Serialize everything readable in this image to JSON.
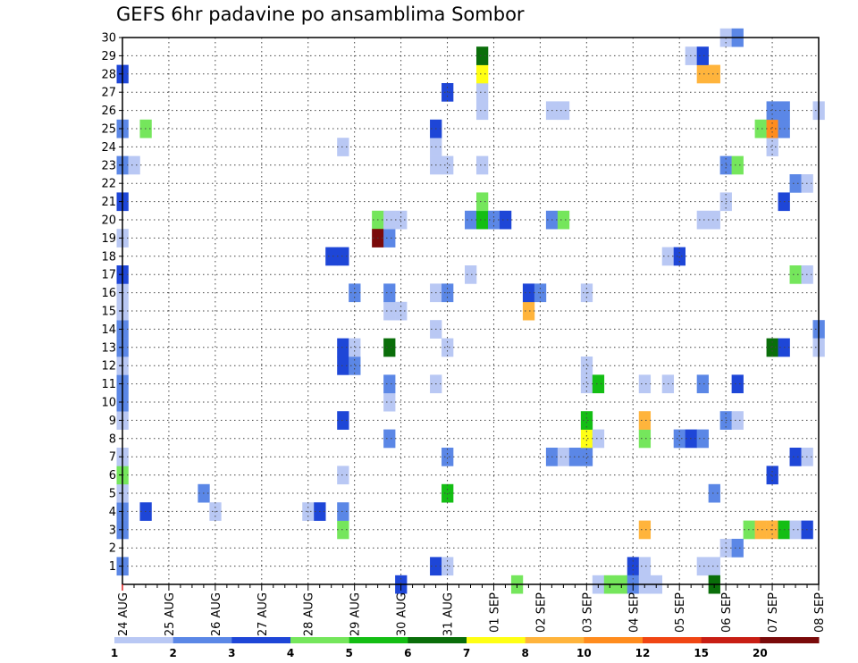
{
  "chart_data": {
    "type": "heatmap",
    "title": "GEFS 6hr padavine po ansamblima Sombor",
    "xlabel": "",
    "ylabel": "",
    "x_ticks": [
      "24 AUG",
      "25 AUG",
      "26 AUG",
      "27 AUG",
      "28 AUG",
      "29 AUG",
      "30 AUG",
      "31 AUG",
      "01 SEP",
      "02 SEP",
      "03 SEP",
      "04 SEP",
      "05 SEP",
      "06 SEP",
      "07 SEP",
      "08 SEP"
    ],
    "xlim_steps": [
      0,
      60
    ],
    "ylim": [
      0,
      30
    ],
    "y_ticks": [
      1,
      2,
      3,
      4,
      5,
      6,
      7,
      8,
      9,
      10,
      11,
      12,
      13,
      14,
      15,
      16,
      17,
      18,
      19,
      20,
      21,
      22,
      23,
      24,
      25,
      26,
      27,
      28,
      29,
      30
    ],
    "grid": true,
    "legend": {
      "placement": "bottom",
      "labels": [
        "1",
        "2",
        "3",
        "4",
        "5",
        "6",
        "7",
        "8",
        "10",
        "12",
        "15",
        "20"
      ],
      "colors": [
        "#b9c8f4",
        "#5b87e6",
        "#1e46d7",
        "#75e65c",
        "#14be14",
        "#0a6e0a",
        "#ffff14",
        "#ffb43c",
        "#ff8c1e",
        "#f04614",
        "#c81e14",
        "#7a0a0a"
      ]
    },
    "cells": [
      [
        0,
        1,
        1
      ],
      [
        0,
        3,
        1
      ],
      [
        0,
        4,
        1
      ],
      [
        0,
        5,
        0
      ],
      [
        0,
        6,
        3
      ],
      [
        0,
        7,
        0
      ],
      [
        0,
        9,
        0
      ],
      [
        0,
        10,
        1
      ],
      [
        0,
        11,
        1
      ],
      [
        0,
        12,
        0
      ],
      [
        0,
        13,
        1
      ],
      [
        0,
        14,
        1
      ],
      [
        0,
        15,
        0
      ],
      [
        0,
        16,
        0
      ],
      [
        0,
        17,
        2
      ],
      [
        0,
        19,
        0
      ],
      [
        0,
        21,
        2
      ],
      [
        0,
        23,
        1
      ],
      [
        0,
        25,
        1
      ],
      [
        0,
        28,
        2
      ],
      [
        1,
        23,
        0
      ],
      [
        2,
        4,
        2
      ],
      [
        2,
        25,
        3
      ],
      [
        7,
        5,
        1
      ],
      [
        8,
        4,
        0
      ],
      [
        16,
        4,
        0
      ],
      [
        17,
        4,
        2
      ],
      [
        18,
        18,
        2
      ],
      [
        19,
        3,
        3
      ],
      [
        19,
        4,
        1
      ],
      [
        19,
        6,
        0
      ],
      [
        19,
        9,
        2
      ],
      [
        19,
        12,
        2
      ],
      [
        19,
        13,
        2
      ],
      [
        19,
        18,
        2
      ],
      [
        19,
        24,
        0
      ],
      [
        20,
        12,
        1
      ],
      [
        20,
        13,
        0
      ],
      [
        20,
        16,
        1
      ],
      [
        22,
        20,
        3
      ],
      [
        22,
        19,
        11
      ],
      [
        23,
        8,
        1
      ],
      [
        23,
        10,
        0
      ],
      [
        23,
        11,
        1
      ],
      [
        23,
        13,
        5
      ],
      [
        23,
        15,
        0
      ],
      [
        23,
        16,
        1
      ],
      [
        23,
        19,
        1
      ],
      [
        23,
        20,
        0
      ],
      [
        24,
        15,
        0
      ],
      [
        24,
        20,
        0
      ],
      [
        24,
        0,
        2
      ],
      [
        27,
        1,
        2
      ],
      [
        27,
        11,
        0
      ],
      [
        27,
        14,
        0
      ],
      [
        27,
        16,
        0
      ],
      [
        27,
        23,
        0
      ],
      [
        27,
        24,
        0
      ],
      [
        27,
        25,
        2
      ],
      [
        28,
        1,
        0
      ],
      [
        28,
        5,
        4
      ],
      [
        28,
        7,
        1
      ],
      [
        28,
        13,
        0
      ],
      [
        28,
        16,
        1
      ],
      [
        28,
        23,
        0
      ],
      [
        28,
        27,
        2
      ],
      [
        30,
        17,
        0
      ],
      [
        30,
        20,
        1
      ],
      [
        31,
        20,
        4
      ],
      [
        31,
        21,
        3
      ],
      [
        31,
        23,
        0
      ],
      [
        31,
        26,
        0
      ],
      [
        31,
        27,
        0
      ],
      [
        31,
        28,
        6
      ],
      [
        31,
        29,
        5
      ],
      [
        32,
        20,
        1
      ],
      [
        33,
        20,
        2
      ],
      [
        34,
        0,
        3
      ],
      [
        35,
        15,
        7
      ],
      [
        35,
        16,
        2
      ],
      [
        36,
        16,
        1
      ],
      [
        37,
        7,
        1
      ],
      [
        37,
        20,
        1
      ],
      [
        37,
        26,
        0
      ],
      [
        38,
        7,
        0
      ],
      [
        38,
        20,
        3
      ],
      [
        38,
        26,
        0
      ],
      [
        39,
        7,
        1
      ],
      [
        40,
        7,
        1
      ],
      [
        40,
        8,
        6
      ],
      [
        40,
        9,
        4
      ],
      [
        40,
        11,
        0
      ],
      [
        40,
        12,
        0
      ],
      [
        40,
        16,
        0
      ],
      [
        41,
        8,
        0
      ],
      [
        41,
        11,
        4
      ],
      [
        41,
        0,
        0
      ],
      [
        42,
        0,
        3
      ],
      [
        43,
        0,
        3
      ],
      [
        44,
        1,
        2
      ],
      [
        44,
        0,
        1
      ],
      [
        45,
        0,
        0
      ],
      [
        45,
        1,
        0
      ],
      [
        45,
        3,
        7
      ],
      [
        45,
        8,
        3
      ],
      [
        45,
        9,
        7
      ],
      [
        45,
        11,
        0
      ],
      [
        46,
        0,
        0
      ],
      [
        47,
        11,
        0
      ],
      [
        47,
        18,
        0
      ],
      [
        48,
        8,
        1
      ],
      [
        48,
        18,
        2
      ],
      [
        49,
        8,
        2
      ],
      [
        49,
        29,
        0
      ],
      [
        50,
        1,
        0
      ],
      [
        50,
        8,
        1
      ],
      [
        50,
        11,
        1
      ],
      [
        50,
        20,
        0
      ],
      [
        50,
        28,
        7
      ],
      [
        50,
        29,
        2
      ],
      [
        51,
        1,
        0
      ],
      [
        51,
        5,
        1
      ],
      [
        51,
        20,
        0
      ],
      [
        51,
        28,
        7
      ],
      [
        51,
        0,
        5
      ],
      [
        52,
        2,
        0
      ],
      [
        52,
        9,
        1
      ],
      [
        52,
        21,
        0
      ],
      [
        52,
        23,
        1
      ],
      [
        52,
        30,
        0
      ],
      [
        53,
        2,
        1
      ],
      [
        53,
        9,
        0
      ],
      [
        53,
        11,
        2
      ],
      [
        53,
        23,
        3
      ],
      [
        53,
        30,
        1
      ],
      [
        54,
        3,
        3
      ],
      [
        55,
        3,
        7
      ],
      [
        55,
        25,
        3
      ],
      [
        56,
        3,
        7
      ],
      [
        56,
        6,
        2
      ],
      [
        56,
        13,
        5
      ],
      [
        56,
        24,
        0
      ],
      [
        56,
        25,
        8
      ],
      [
        56,
        26,
        1
      ],
      [
        57,
        3,
        4
      ],
      [
        57,
        13,
        2
      ],
      [
        57,
        21,
        2
      ],
      [
        57,
        25,
        1
      ],
      [
        57,
        26,
        1
      ],
      [
        58,
        3,
        0
      ],
      [
        58,
        7,
        2
      ],
      [
        58,
        17,
        3
      ],
      [
        58,
        22,
        1
      ],
      [
        59,
        3,
        2
      ],
      [
        59,
        7,
        0
      ],
      [
        59,
        17,
        0
      ],
      [
        59,
        22,
        0
      ],
      [
        60,
        14,
        1
      ],
      [
        60,
        13,
        0
      ],
      [
        60,
        26,
        0
      ]
    ]
  }
}
